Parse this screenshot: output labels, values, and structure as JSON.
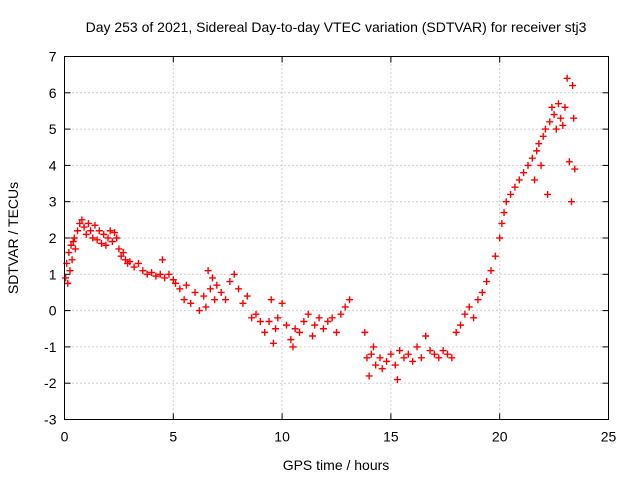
{
  "chart_data": {
    "type": "scatter",
    "title": "Day 253 of 2021, Sidereal Day-to-day VTEC variation (SDTVAR) for receiver stj3",
    "xlabel": "GPS time / hours",
    "ylabel": "SDTVAR / TECUs",
    "xlim": [
      0,
      25
    ],
    "ylim": [
      -3,
      7
    ],
    "xticks": [
      "0",
      "5",
      "10",
      "15",
      "20",
      "25"
    ],
    "yticks": [
      "-3",
      "-2",
      "-1",
      "0",
      "1",
      "2",
      "3",
      "4",
      "5",
      "6",
      "7"
    ],
    "grid": true,
    "marker": "plus",
    "color": "#ff0000",
    "series": [
      {
        "name": "SDTVAR",
        "points": [
          [
            0.05,
            0.9
          ],
          [
            0.1,
            1.3
          ],
          [
            0.15,
            0.75
          ],
          [
            0.2,
            1.6
          ],
          [
            0.25,
            1.1
          ],
          [
            0.3,
            1.8
          ],
          [
            0.35,
            1.4
          ],
          [
            0.4,
            1.9
          ],
          [
            0.45,
            2.0
          ],
          [
            0.5,
            1.7
          ],
          [
            0.6,
            2.2
          ],
          [
            0.7,
            2.4
          ],
          [
            0.8,
            2.5
          ],
          [
            0.9,
            2.3
          ],
          [
            1.0,
            2.1
          ],
          [
            1.1,
            2.4
          ],
          [
            1.2,
            2.2
          ],
          [
            1.3,
            2.0
          ],
          [
            1.4,
            2.35
          ],
          [
            1.5,
            1.95
          ],
          [
            1.6,
            2.2
          ],
          [
            1.7,
            1.85
          ],
          [
            1.8,
            2.1
          ],
          [
            1.9,
            1.8
          ],
          [
            2.0,
            2.0
          ],
          [
            2.1,
            2.2
          ],
          [
            2.2,
            1.9
          ],
          [
            2.3,
            2.15
          ],
          [
            2.4,
            2.0
          ],
          [
            2.5,
            1.7
          ],
          [
            2.6,
            1.5
          ],
          [
            2.7,
            1.6
          ],
          [
            2.8,
            1.4
          ],
          [
            2.9,
            1.3
          ],
          [
            3.0,
            1.35
          ],
          [
            3.2,
            1.2
          ],
          [
            3.4,
            1.3
          ],
          [
            3.6,
            1.1
          ],
          [
            3.8,
            1.0
          ],
          [
            4.0,
            1.05
          ],
          [
            4.2,
            0.95
          ],
          [
            4.4,
            1.0
          ],
          [
            4.6,
            0.9
          ],
          [
            4.8,
            1.0
          ],
          [
            4.5,
            1.4
          ],
          [
            5.0,
            0.85
          ],
          [
            5.1,
            0.75
          ],
          [
            5.3,
            0.6
          ],
          [
            5.5,
            0.3
          ],
          [
            5.6,
            0.7
          ],
          [
            5.8,
            0.2
          ],
          [
            6.0,
            0.5
          ],
          [
            6.2,
            0.0
          ],
          [
            6.4,
            0.4
          ],
          [
            6.5,
            0.1
          ],
          [
            6.6,
            1.1
          ],
          [
            6.7,
            0.6
          ],
          [
            6.8,
            0.9
          ],
          [
            6.9,
            0.3
          ],
          [
            7.0,
            0.7
          ],
          [
            7.2,
            0.5
          ],
          [
            7.4,
            0.3
          ],
          [
            7.6,
            0.8
          ],
          [
            7.8,
            1.0
          ],
          [
            8.0,
            0.6
          ],
          [
            8.2,
            0.2
          ],
          [
            8.4,
            0.4
          ],
          [
            8.6,
            -0.2
          ],
          [
            8.8,
            -0.1
          ],
          [
            9.0,
            -0.3
          ],
          [
            9.2,
            -0.6
          ],
          [
            9.4,
            -0.3
          ],
          [
            9.5,
            0.3
          ],
          [
            9.6,
            -0.9
          ],
          [
            9.7,
            -0.5
          ],
          [
            9.8,
            -0.2
          ],
          [
            10.0,
            0.2
          ],
          [
            10.2,
            -0.4
          ],
          [
            10.4,
            -0.8
          ],
          [
            10.5,
            -1.0
          ],
          [
            10.6,
            -0.5
          ],
          [
            10.8,
            -0.6
          ],
          [
            11.0,
            -0.3
          ],
          [
            11.2,
            -0.1
          ],
          [
            11.4,
            -0.7
          ],
          [
            11.5,
            -0.4
          ],
          [
            11.7,
            -0.2
          ],
          [
            11.9,
            -0.5
          ],
          [
            12.1,
            -0.3
          ],
          [
            12.3,
            -0.2
          ],
          [
            12.5,
            -0.6
          ],
          [
            12.7,
            -0.1
          ],
          [
            12.9,
            0.1
          ],
          [
            13.1,
            0.3
          ],
          [
            13.8,
            -0.6
          ],
          [
            13.9,
            -1.3
          ],
          [
            14.0,
            -1.8
          ],
          [
            14.1,
            -1.2
          ],
          [
            14.2,
            -1.0
          ],
          [
            14.3,
            -1.5
          ],
          [
            14.5,
            -1.3
          ],
          [
            14.6,
            -1.6
          ],
          [
            14.8,
            -1.4
          ],
          [
            15.0,
            -1.2
          ],
          [
            15.2,
            -1.5
          ],
          [
            15.3,
            -1.9
          ],
          [
            15.4,
            -1.1
          ],
          [
            15.6,
            -1.3
          ],
          [
            15.8,
            -1.2
          ],
          [
            16.0,
            -1.4
          ],
          [
            16.2,
            -1.0
          ],
          [
            16.4,
            -1.3
          ],
          [
            16.6,
            -0.7
          ],
          [
            16.8,
            -1.1
          ],
          [
            17.0,
            -1.2
          ],
          [
            17.2,
            -1.3
          ],
          [
            17.4,
            -1.1
          ],
          [
            17.6,
            -1.2
          ],
          [
            17.8,
            -1.3
          ],
          [
            18.0,
            -0.6
          ],
          [
            18.2,
            -0.4
          ],
          [
            18.4,
            -0.1
          ],
          [
            18.6,
            0.1
          ],
          [
            18.8,
            -0.2
          ],
          [
            19.0,
            0.3
          ],
          [
            19.2,
            0.5
          ],
          [
            19.4,
            0.8
          ],
          [
            19.6,
            1.1
          ],
          [
            19.8,
            1.5
          ],
          [
            20.0,
            2.0
          ],
          [
            20.1,
            2.4
          ],
          [
            20.2,
            2.7
          ],
          [
            20.3,
            3.0
          ],
          [
            20.5,
            3.2
          ],
          [
            20.7,
            3.4
          ],
          [
            20.9,
            3.6
          ],
          [
            21.1,
            3.8
          ],
          [
            21.3,
            4.0
          ],
          [
            21.5,
            4.2
          ],
          [
            21.6,
            3.6
          ],
          [
            21.7,
            4.4
          ],
          [
            21.8,
            4.6
          ],
          [
            21.9,
            4.0
          ],
          [
            22.0,
            4.8
          ],
          [
            22.1,
            5.0
          ],
          [
            22.2,
            3.2
          ],
          [
            22.3,
            5.2
          ],
          [
            22.4,
            5.6
          ],
          [
            22.5,
            5.4
          ],
          [
            22.6,
            5.0
          ],
          [
            22.7,
            5.7
          ],
          [
            22.8,
            5.3
          ],
          [
            22.9,
            5.1
          ],
          [
            23.0,
            5.6
          ],
          [
            23.1,
            6.4
          ],
          [
            23.2,
            4.1
          ],
          [
            23.3,
            3.0
          ],
          [
            23.35,
            6.2
          ],
          [
            23.4,
            5.3
          ],
          [
            23.45,
            3.9
          ]
        ]
      }
    ]
  }
}
